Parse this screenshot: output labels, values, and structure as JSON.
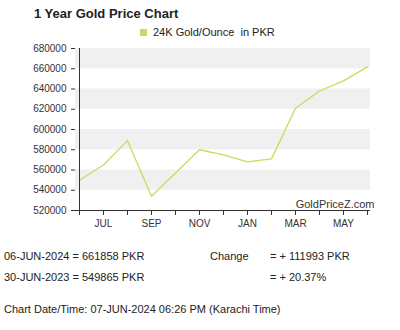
{
  "chart_data": {
    "type": "line",
    "title": "1 Year Gold Price Chart",
    "categories": [
      null,
      "JUL",
      null,
      "SEP",
      null,
      "NOV",
      null,
      "JAN",
      null,
      "MAR",
      null,
      "MAY",
      null
    ],
    "series": [
      {
        "name": "24K Gold/Ounce  in PKR",
        "color": "#c5dd5e",
        "values": [
          549865,
          565000,
          589000,
          534000,
          557000,
          580000,
          575000,
          568000,
          571000,
          621000,
          638000,
          648000,
          661858
        ]
      }
    ],
    "ylim": [
      520000,
      680000
    ],
    "yticks": [
      520000,
      540000,
      560000,
      580000,
      600000,
      620000,
      640000,
      660000,
      680000
    ],
    "grid": true,
    "legend": "top",
    "annotations": [
      "GoldPriceZ.com",
      "06-JUN-2024 = 661858 PKR",
      "Change",
      "= + 111993 PKR",
      "30-JUN-2023 = 549865 PKR",
      "= + 20.37%",
      "Chart Date/Time: 07-JUN-2024 06:26 PM (Karachi Time)"
    ]
  }
}
